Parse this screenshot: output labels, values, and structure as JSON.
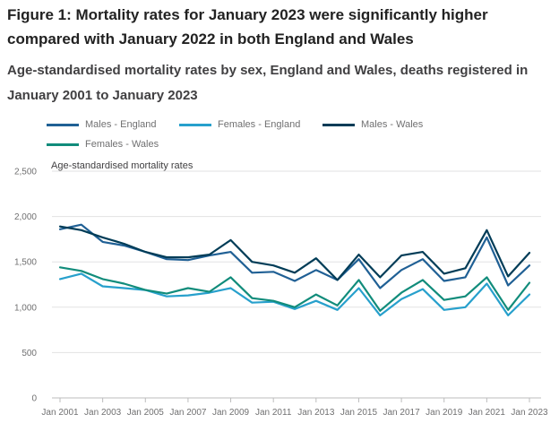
{
  "title": "Figure 1: Mortality rates for January 2023 were significantly higher compared with January 2022 in both England and Wales",
  "subtitle": "Age-standardised mortality rates by sex, England and Wales, deaths registered in January 2001 to January 2023",
  "chart_data": {
    "type": "line",
    "ylabel": "Age-standardised mortality rates",
    "ylim": [
      0,
      2500
    ],
    "yticks": [
      "0",
      "500",
      "1,000",
      "1,500",
      "2,000",
      "2,500"
    ],
    "ytick_values": [
      0,
      500,
      1000,
      1500,
      2000,
      2500
    ],
    "x": [
      2001,
      2002,
      2003,
      2004,
      2005,
      2006,
      2007,
      2008,
      2009,
      2010,
      2011,
      2012,
      2013,
      2014,
      2015,
      2016,
      2017,
      2018,
      2019,
      2020,
      2021,
      2022,
      2023
    ],
    "xtick_labels": [
      "Jan 2001",
      "Jan 2003",
      "Jan 2005",
      "Jan 2007",
      "Jan 2009",
      "Jan 2011",
      "Jan 2013",
      "Jan 2015",
      "Jan 2017",
      "Jan 2019",
      "Jan 2021",
      "Jan 2023"
    ],
    "xtick_values": [
      2001,
      2003,
      2005,
      2007,
      2009,
      2011,
      2013,
      2015,
      2017,
      2019,
      2021,
      2023
    ],
    "grid": "horizontal",
    "legend_position": "top",
    "series": [
      {
        "name": "Males - England",
        "color": "#206095",
        "values": [
          1860,
          1910,
          1720,
          1680,
          1610,
          1530,
          1520,
          1570,
          1610,
          1380,
          1390,
          1290,
          1410,
          1300,
          1530,
          1210,
          1410,
          1530,
          1290,
          1330,
          1770,
          1240,
          1460
        ]
      },
      {
        "name": "Females - England",
        "color": "#27a0cc",
        "values": [
          1310,
          1370,
          1230,
          1210,
          1190,
          1120,
          1130,
          1160,
          1210,
          1050,
          1060,
          980,
          1070,
          970,
          1210,
          910,
          1090,
          1200,
          970,
          1000,
          1260,
          910,
          1140
        ]
      },
      {
        "name": "Males - Wales",
        "color": "#003c57",
        "values": [
          1890,
          1850,
          1770,
          1700,
          1610,
          1550,
          1550,
          1580,
          1740,
          1500,
          1460,
          1380,
          1540,
          1300,
          1580,
          1330,
          1570,
          1610,
          1370,
          1430,
          1850,
          1340,
          1600
        ]
      },
      {
        "name": "Females - Wales",
        "color": "#118c7b",
        "values": [
          1440,
          1400,
          1310,
          1260,
          1190,
          1150,
          1210,
          1170,
          1330,
          1100,
          1070,
          1000,
          1140,
          1020,
          1300,
          960,
          1160,
          1300,
          1080,
          1120,
          1330,
          970,
          1270
        ]
      }
    ]
  }
}
